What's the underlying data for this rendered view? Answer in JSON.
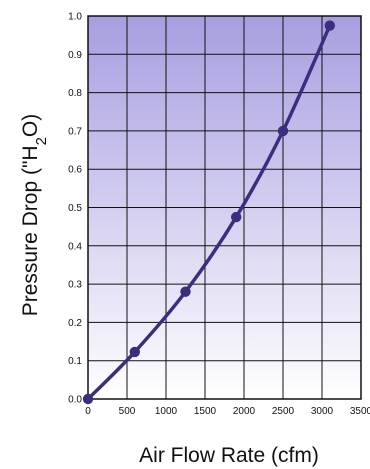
{
  "chart_data": {
    "type": "line",
    "title": "",
    "xlabel": "Air Flow Rate (cfm)",
    "ylabel": {
      "prefix": "Pressure Drop (\"H",
      "subscript": "2",
      "suffix": "O)"
    },
    "xlim": [
      0,
      3500
    ],
    "ylim": [
      0.0,
      1.0
    ],
    "x_ticks": [
      "0",
      "500",
      "1000",
      "1500",
      "2000",
      "2500",
      "3000",
      "3500"
    ],
    "y_ticks": [
      "0.0",
      "0.1",
      "0.2",
      "0.3",
      "0.4",
      "0.5",
      "0.6",
      "0.7",
      "0.8",
      "0.9",
      "1.0"
    ],
    "grid": true,
    "series": [
      {
        "x": [
          0,
          600,
          1250,
          1900,
          2500,
          3100
        ],
        "y": [
          0.0,
          0.123,
          0.28,
          0.475,
          0.7,
          0.975
        ]
      }
    ],
    "colors": {
      "line": "#3b2e7e",
      "grid": "#111111",
      "bg_top": "#a79ee0",
      "bg_bottom": "#ffffff"
    }
  }
}
